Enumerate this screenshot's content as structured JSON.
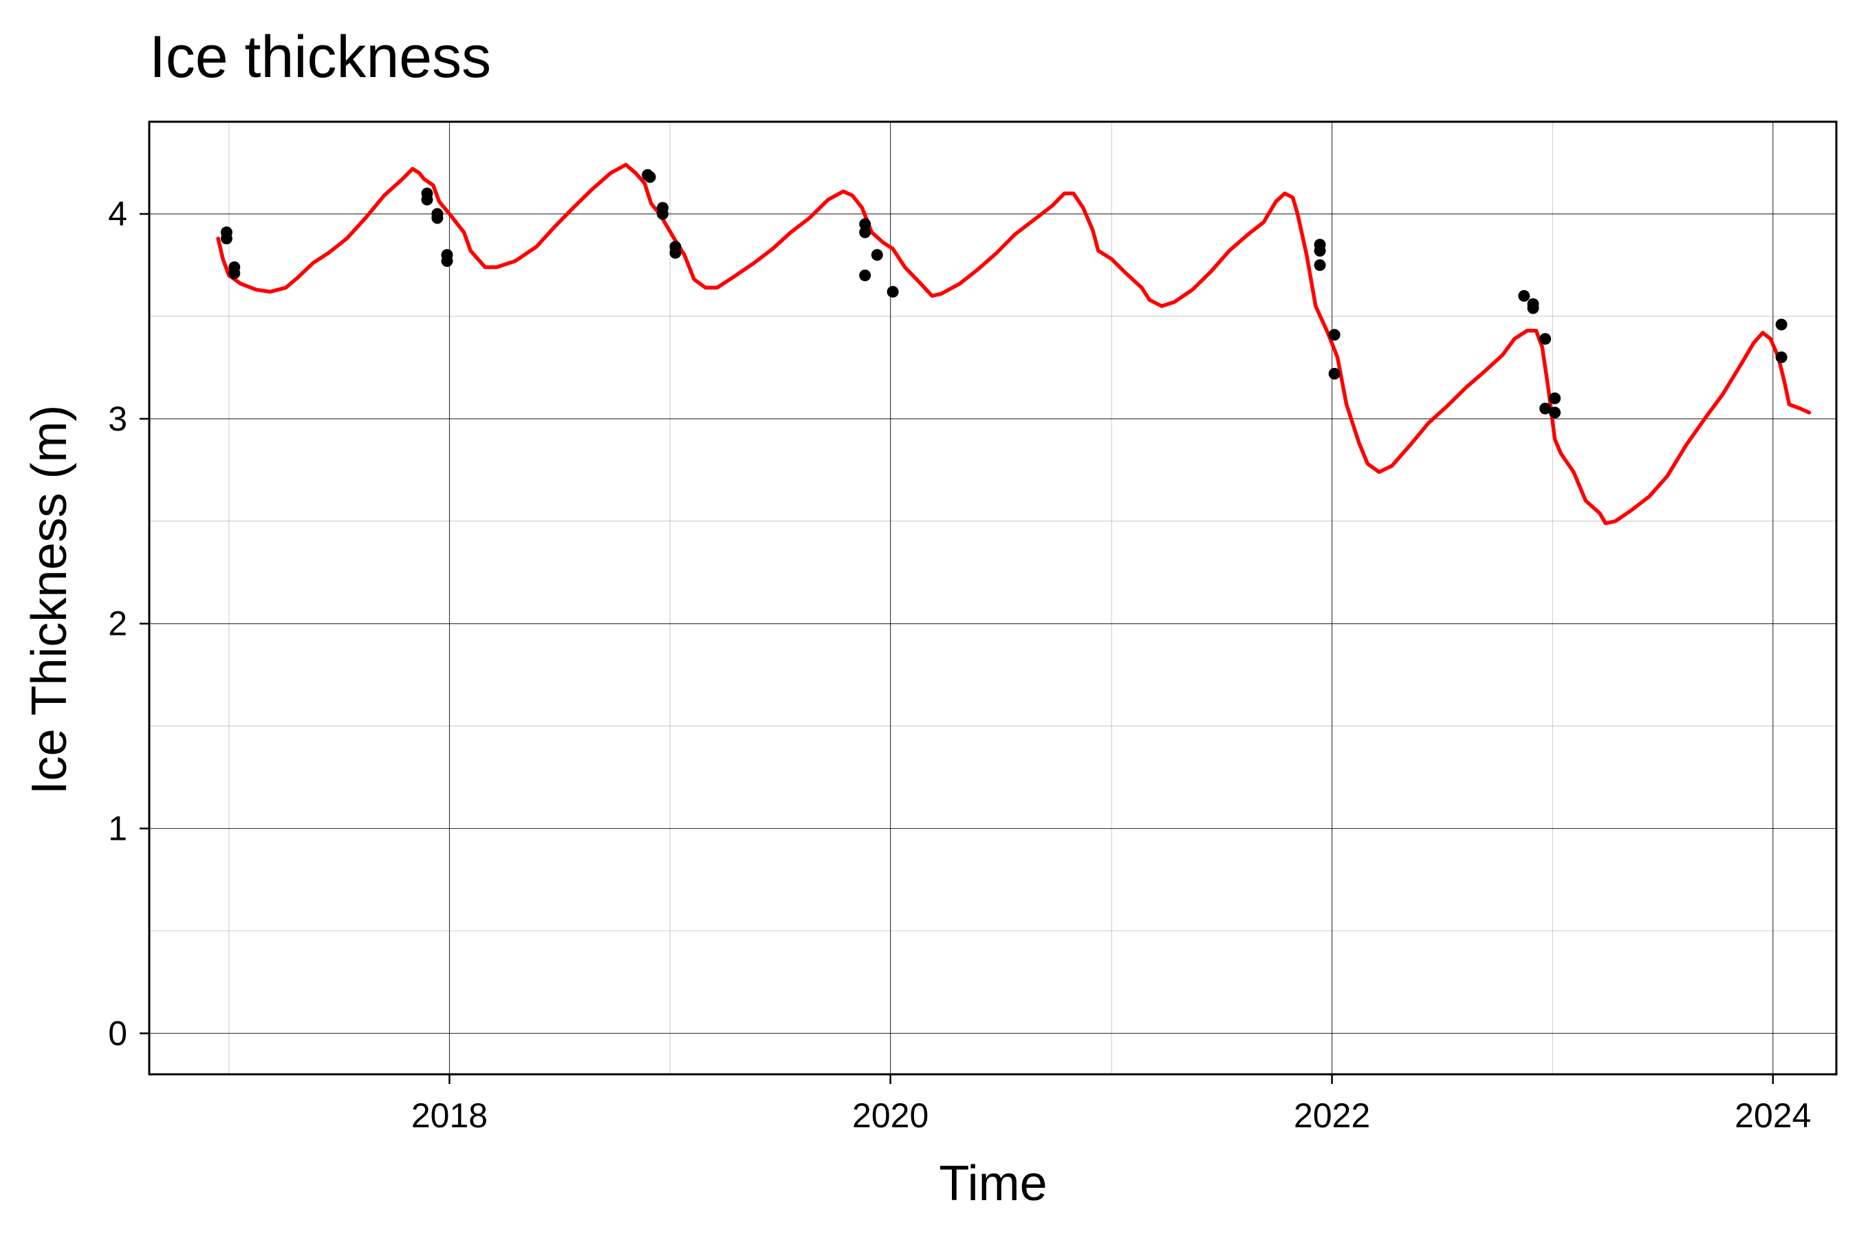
{
  "chart_data": {
    "type": "line",
    "title": "Ice thickness",
    "xlabel": "Time",
    "ylabel": "Ice Thickness (m)",
    "x_tick_labels": [
      "2018",
      "2020",
      "2022",
      "2024"
    ],
    "y_tick_labels": [
      "0",
      "1",
      "2",
      "3",
      "4"
    ],
    "xlim": [
      "2016-08-22",
      "2024-04-15"
    ],
    "ylim": [
      -0.2,
      4.45
    ],
    "grid": true,
    "colors": {
      "line": "#ff0000",
      "points": "#000000",
      "grid": "#000000",
      "frame": "#000000"
    },
    "series": [
      {
        "type": "line",
        "points": [
          [
            "2016-12-14",
            3.88
          ],
          [
            "2016-12-22",
            3.78
          ],
          [
            "2017-01-01",
            3.7
          ],
          [
            "2017-01-20",
            3.66
          ],
          [
            "2017-02-15",
            3.63
          ],
          [
            "2017-03-10",
            3.62
          ],
          [
            "2017-04-05",
            3.64
          ],
          [
            "2017-04-25",
            3.69
          ],
          [
            "2017-05-20",
            3.76
          ],
          [
            "2017-06-15",
            3.81
          ],
          [
            "2017-07-15",
            3.88
          ],
          [
            "2017-08-15",
            3.98
          ],
          [
            "2017-09-15",
            4.09
          ],
          [
            "2017-10-15",
            4.17
          ],
          [
            "2017-11-01",
            4.22
          ],
          [
            "2017-11-12",
            4.2
          ],
          [
            "2017-11-20",
            4.17
          ],
          [
            "2017-12-05",
            4.14
          ],
          [
            "2017-12-15",
            4.06
          ],
          [
            "2018-01-01",
            4.0
          ],
          [
            "2018-01-25",
            3.91
          ],
          [
            "2018-02-05",
            3.82
          ],
          [
            "2018-03-01",
            3.74
          ],
          [
            "2018-03-20",
            3.74
          ],
          [
            "2018-04-20",
            3.77
          ],
          [
            "2018-05-25",
            3.84
          ],
          [
            "2018-06-25",
            3.94
          ],
          [
            "2018-07-25",
            4.03
          ],
          [
            "2018-08-25",
            4.12
          ],
          [
            "2018-09-25",
            4.2
          ],
          [
            "2018-10-20",
            4.24
          ],
          [
            "2018-11-05",
            4.2
          ],
          [
            "2018-11-20",
            4.15
          ],
          [
            "2018-12-01",
            4.05
          ],
          [
            "2018-12-15",
            4.0
          ],
          [
            "2019-01-10",
            3.87
          ],
          [
            "2019-01-25",
            3.8
          ],
          [
            "2019-02-10",
            3.68
          ],
          [
            "2019-03-01",
            3.64
          ],
          [
            "2019-03-20",
            3.64
          ],
          [
            "2019-04-15",
            3.69
          ],
          [
            "2019-05-20",
            3.76
          ],
          [
            "2019-06-20",
            3.83
          ],
          [
            "2019-07-20",
            3.91
          ],
          [
            "2019-08-20",
            3.98
          ],
          [
            "2019-09-20",
            4.07
          ],
          [
            "2019-10-15",
            4.11
          ],
          [
            "2019-10-30",
            4.09
          ],
          [
            "2019-11-15",
            4.03
          ],
          [
            "2019-12-01",
            3.91
          ],
          [
            "2019-12-20",
            3.86
          ],
          [
            "2020-01-05",
            3.83
          ],
          [
            "2020-01-25",
            3.74
          ],
          [
            "2020-02-20",
            3.66
          ],
          [
            "2020-03-10",
            3.6
          ],
          [
            "2020-03-25",
            3.61
          ],
          [
            "2020-04-25",
            3.66
          ],
          [
            "2020-05-25",
            3.73
          ],
          [
            "2020-06-25",
            3.81
          ],
          [
            "2020-07-25",
            3.9
          ],
          [
            "2020-08-25",
            3.97
          ],
          [
            "2020-09-25",
            4.04
          ],
          [
            "2020-10-15",
            4.1
          ],
          [
            "2020-10-30",
            4.1
          ],
          [
            "2020-11-15",
            4.03
          ],
          [
            "2020-12-01",
            3.92
          ],
          [
            "2020-12-10",
            3.82
          ],
          [
            "2021-01-01",
            3.78
          ],
          [
            "2021-01-25",
            3.71
          ],
          [
            "2021-02-20",
            3.64
          ],
          [
            "2021-03-05",
            3.58
          ],
          [
            "2021-03-25",
            3.55
          ],
          [
            "2021-04-15",
            3.57
          ],
          [
            "2021-05-15",
            3.63
          ],
          [
            "2021-06-15",
            3.72
          ],
          [
            "2021-07-15",
            3.82
          ],
          [
            "2021-08-15",
            3.9
          ],
          [
            "2021-09-10",
            3.96
          ],
          [
            "2021-09-30",
            4.06
          ],
          [
            "2021-10-15",
            4.1
          ],
          [
            "2021-10-28",
            4.08
          ],
          [
            "2021-11-05",
            4.0
          ],
          [
            "2021-11-20",
            3.8
          ],
          [
            "2021-12-05",
            3.55
          ],
          [
            "2021-12-25",
            3.42
          ],
          [
            "2022-01-10",
            3.3
          ],
          [
            "2022-01-25",
            3.07
          ],
          [
            "2022-02-15",
            2.88
          ],
          [
            "2022-03-01",
            2.78
          ],
          [
            "2022-03-20",
            2.74
          ],
          [
            "2022-04-10",
            2.77
          ],
          [
            "2022-05-10",
            2.87
          ],
          [
            "2022-06-10",
            2.98
          ],
          [
            "2022-07-10",
            3.06
          ],
          [
            "2022-08-10",
            3.15
          ],
          [
            "2022-09-10",
            3.23
          ],
          [
            "2022-10-10",
            3.31
          ],
          [
            "2022-10-30",
            3.39
          ],
          [
            "2022-11-20",
            3.43
          ],
          [
            "2022-12-05",
            3.43
          ],
          [
            "2022-12-15",
            3.35
          ],
          [
            "2022-12-25",
            3.15
          ],
          [
            "2023-01-05",
            2.9
          ],
          [
            "2023-01-15",
            2.83
          ],
          [
            "2023-02-05",
            2.74
          ],
          [
            "2023-02-25",
            2.6
          ],
          [
            "2023-03-20",
            2.54
          ],
          [
            "2023-03-30",
            2.49
          ],
          [
            "2023-04-15",
            2.5
          ],
          [
            "2023-05-10",
            2.55
          ],
          [
            "2023-06-10",
            2.62
          ],
          [
            "2023-07-10",
            2.72
          ],
          [
            "2023-08-10",
            2.87
          ],
          [
            "2023-09-10",
            3.0
          ],
          [
            "2023-10-10",
            3.12
          ],
          [
            "2023-11-10",
            3.27
          ],
          [
            "2023-11-30",
            3.37
          ],
          [
            "2023-12-15",
            3.42
          ],
          [
            "2023-12-28",
            3.39
          ],
          [
            "2024-01-10",
            3.3
          ],
          [
            "2024-01-20",
            3.18
          ],
          [
            "2024-01-28",
            3.07
          ],
          [
            "2024-02-15",
            3.05
          ],
          [
            "2024-03-01",
            3.03
          ]
        ]
      },
      {
        "type": "scatter",
        "points": [
          [
            "2016-12-28",
            3.91
          ],
          [
            "2016-12-28",
            3.88
          ],
          [
            "2017-01-10",
            3.74
          ],
          [
            "2017-01-10",
            3.71
          ],
          [
            "2017-11-25",
            4.1
          ],
          [
            "2017-11-25",
            4.07
          ],
          [
            "2017-12-12",
            4.0
          ],
          [
            "2017-12-12",
            3.98
          ],
          [
            "2017-12-28",
            3.8
          ],
          [
            "2017-12-28",
            3.77
          ],
          [
            "2018-11-25",
            4.19
          ],
          [
            "2018-11-29",
            4.18
          ],
          [
            "2018-12-20",
            4.03
          ],
          [
            "2018-12-20",
            4.0
          ],
          [
            "2019-01-10",
            3.84
          ],
          [
            "2019-01-10",
            3.81
          ],
          [
            "2019-11-20",
            3.95
          ],
          [
            "2019-11-20",
            3.91
          ],
          [
            "2019-11-20",
            3.7
          ],
          [
            "2019-12-10",
            3.8
          ],
          [
            "2020-01-05",
            3.62
          ],
          [
            "2021-12-12",
            3.85
          ],
          [
            "2021-12-12",
            3.82
          ],
          [
            "2021-12-12",
            3.75
          ],
          [
            "2022-01-05",
            3.41
          ],
          [
            "2022-01-05",
            3.22
          ],
          [
            "2022-11-15",
            3.6
          ],
          [
            "2022-11-30",
            3.56
          ],
          [
            "2022-11-30",
            3.54
          ],
          [
            "2022-12-20",
            3.39
          ],
          [
            "2022-12-20",
            3.05
          ],
          [
            "2023-01-05",
            3.1
          ],
          [
            "2023-01-05",
            3.03
          ],
          [
            "2024-01-15",
            3.46
          ],
          [
            "2024-01-15",
            3.3
          ]
        ]
      }
    ]
  }
}
